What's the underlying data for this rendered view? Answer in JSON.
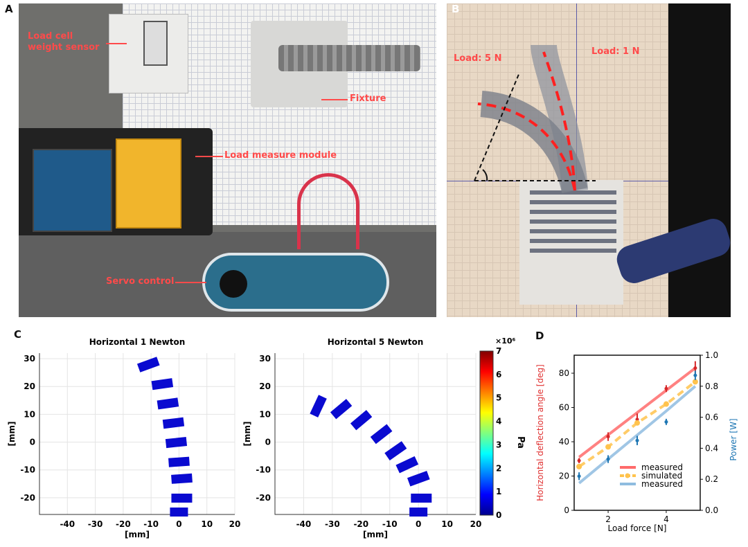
{
  "panels": {
    "a": "A",
    "b": "B",
    "c": "C",
    "d": "D"
  },
  "panel_a": {
    "labels": {
      "load_cell": "Load cell\nweight sensor",
      "fixture": "Fixture",
      "load_module": "Load measure module",
      "servo": "Servo control"
    }
  },
  "panel_b": {
    "labels": {
      "load5": "Load: 5 N",
      "load1": "Load: 1 N"
    }
  },
  "panel_c": {
    "plots": [
      {
        "title": "Horizontal 1 Newton",
        "xlabel": "[mm]",
        "ylabel": "[mm]",
        "xticks": [
          "-40",
          "-30",
          "-20",
          "-10",
          "0",
          "10",
          "20"
        ],
        "yticks": [
          "30",
          "20",
          "10",
          "0",
          "-10",
          "-20"
        ]
      },
      {
        "title": "Horizontal 5 Newton",
        "xlabel": "[mm]",
        "ylabel": "[mm]",
        "xticks": [
          "-40",
          "-30",
          "-20",
          "-10",
          "0",
          "10",
          "20"
        ],
        "yticks": [
          "30",
          "20",
          "10",
          "0",
          "-10",
          "-20"
        ]
      }
    ],
    "colorbar": {
      "label": "Pa",
      "multiplier": "×10⁶",
      "ticks": [
        "0",
        "1",
        "2",
        "3",
        "4",
        "5",
        "6",
        "7"
      ],
      "colormap": "jet"
    }
  },
  "chart_data": {
    "type": "line",
    "xlabel": "Load force [N]",
    "ylabel": "Horizontal deflection angle [deg]",
    "ylabel_right": "Power [W]",
    "xlim": [
      0.83,
      5.17
    ],
    "ylim": [
      0,
      90.5
    ],
    "ylim_right": [
      0,
      1.0
    ],
    "xticks": [
      "2",
      "4"
    ],
    "yticks": [
      "0",
      "20",
      "40",
      "60",
      "80"
    ],
    "yticks_right": [
      "0.0",
      "0.2",
      "0.4",
      "0.6",
      "0.8",
      "1.0"
    ],
    "legend_position": "bottom-right",
    "series": [
      {
        "name": "measured",
        "axis": "left",
        "color": "#ff6b6b",
        "point_color": "#d62728",
        "x": [
          1,
          2,
          3,
          4,
          5
        ],
        "values": [
          29,
          43,
          53,
          71,
          83
        ],
        "errors": [
          1.5,
          2.5,
          3.5,
          2,
          4
        ],
        "fit": [
          31,
          44,
          57,
          70,
          83
        ],
        "style": "solid"
      },
      {
        "name": "simulated",
        "axis": "left",
        "color": "#ffc34d",
        "point_color": "#ffc34d",
        "x": [
          1,
          2,
          3,
          4,
          5
        ],
        "values": [
          25.5,
          37,
          51,
          62,
          75
        ],
        "errors": [
          0,
          0,
          0,
          0,
          0
        ],
        "fit": [
          25.5,
          37,
          51,
          62,
          75
        ],
        "style": "dashed"
      },
      {
        "name": "measured",
        "axis": "right",
        "color": "#8fbce0",
        "point_color": "#1f77b4",
        "x": [
          1,
          2,
          3,
          4,
          5
        ],
        "values": [
          0.22,
          0.33,
          0.45,
          0.57,
          0.87
        ],
        "errors": [
          0.025,
          0.025,
          0.03,
          0.02,
          0.03
        ],
        "fit": [
          0.175,
          0.33,
          0.485,
          0.64,
          0.8
        ],
        "style": "solid"
      }
    ]
  }
}
